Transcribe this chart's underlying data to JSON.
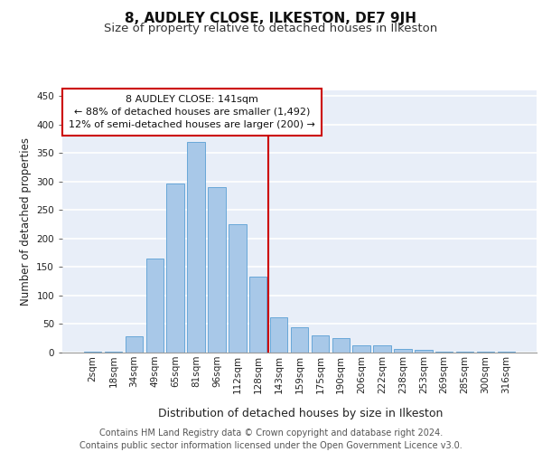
{
  "title": "8, AUDLEY CLOSE, ILKESTON, DE7 9JH",
  "subtitle": "Size of property relative to detached houses in Ilkeston",
  "xlabel": "Distribution of detached houses by size in Ilkeston",
  "ylabel": "Number of detached properties",
  "categories": [
    "2sqm",
    "18sqm",
    "34sqm",
    "49sqm",
    "65sqm",
    "81sqm",
    "96sqm",
    "112sqm",
    "128sqm",
    "143sqm",
    "159sqm",
    "175sqm",
    "190sqm",
    "206sqm",
    "222sqm",
    "238sqm",
    "253sqm",
    "269sqm",
    "285sqm",
    "300sqm",
    "316sqm"
  ],
  "values": [
    2,
    2,
    28,
    165,
    297,
    370,
    291,
    226,
    133,
    62,
    44,
    30,
    25,
    12,
    13,
    6,
    4,
    2,
    1,
    1,
    1
  ],
  "bar_color": "#a8c8e8",
  "bar_edge_color": "#5a9fd4",
  "annotation_line1": "8 AUDLEY CLOSE: 141sqm",
  "annotation_line2": "← 88% of detached houses are smaller (1,492)",
  "annotation_line3": "12% of semi-detached houses are larger (200) →",
  "annotation_box_color": "#ffffff",
  "annotation_box_edge_color": "#cc0000",
  "vline_color": "#cc0000",
  "vline_x": 8.5,
  "ylim": [
    0,
    460
  ],
  "yticks": [
    0,
    50,
    100,
    150,
    200,
    250,
    300,
    350,
    400,
    450
  ],
  "background_color": "#e8eef8",
  "grid_color": "#ffffff",
  "footer_line1": "Contains HM Land Registry data © Crown copyright and database right 2024.",
  "footer_line2": "Contains public sector information licensed under the Open Government Licence v3.0.",
  "title_fontsize": 11,
  "subtitle_fontsize": 9.5,
  "xlabel_fontsize": 9,
  "ylabel_fontsize": 8.5,
  "tick_fontsize": 7.5,
  "annotation_fontsize": 8,
  "footer_fontsize": 7
}
